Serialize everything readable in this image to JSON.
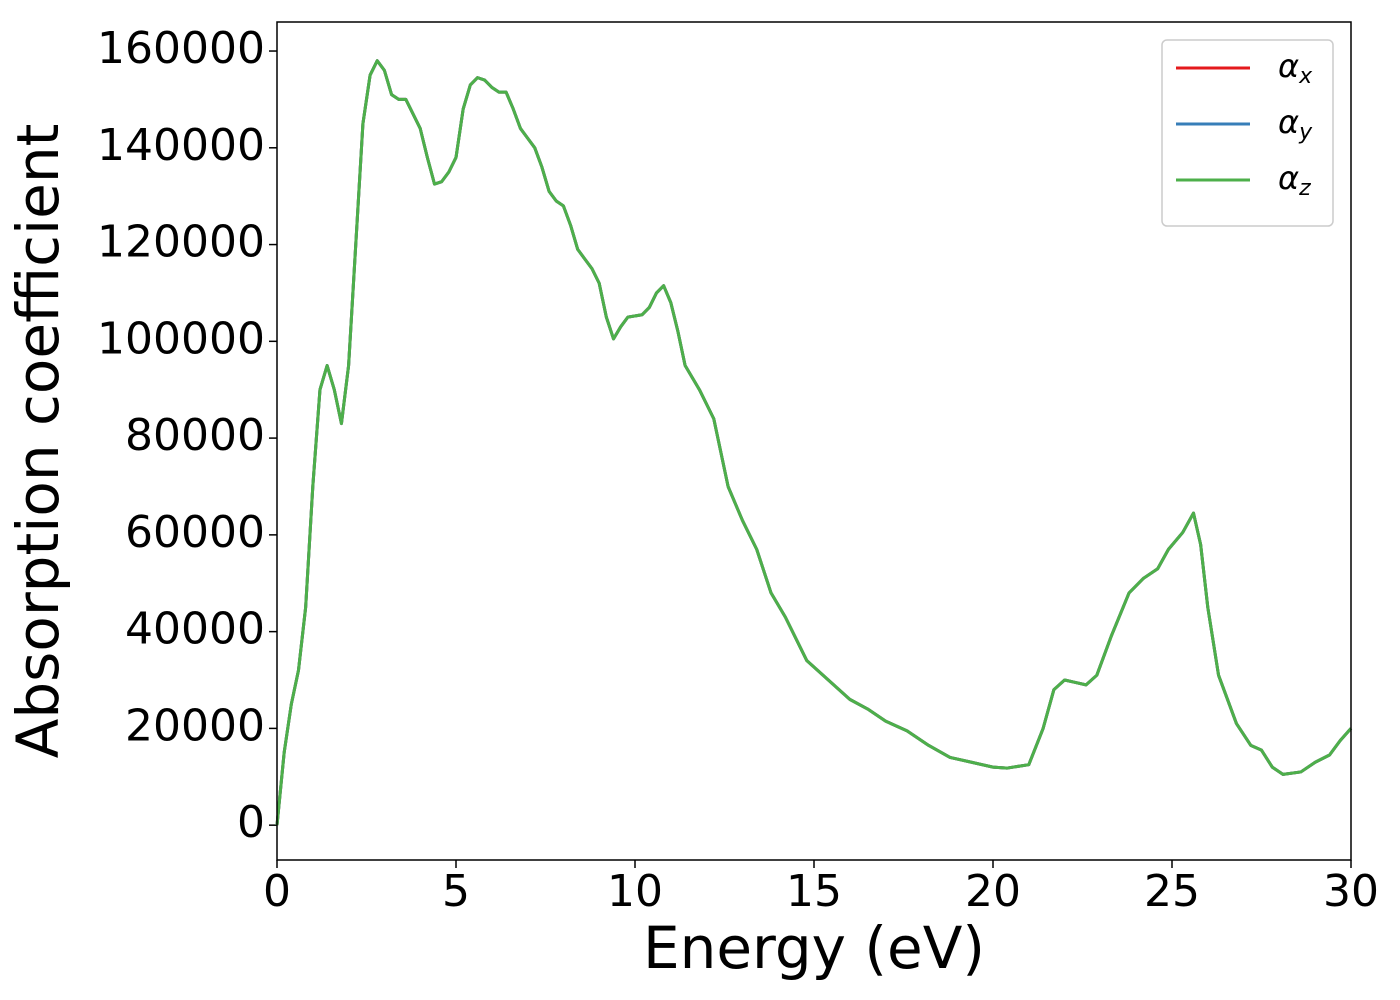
{
  "chart_data": {
    "type": "line",
    "xlabel": "Energy (eV)",
    "ylabel": "Absorption coefficient",
    "x": [
      0,
      0.2,
      0.4,
      0.6,
      0.8,
      1.0,
      1.2,
      1.4,
      1.6,
      1.8,
      2.0,
      2.2,
      2.4,
      2.6,
      2.8,
      3.0,
      3.2,
      3.4,
      3.6,
      3.8,
      4.0,
      4.2,
      4.4,
      4.6,
      4.8,
      5.0,
      5.2,
      5.4,
      5.6,
      5.8,
      6.0,
      6.2,
      6.4,
      6.6,
      6.8,
      7.0,
      7.2,
      7.4,
      7.6,
      7.8,
      8.0,
      8.2,
      8.4,
      8.6,
      8.8,
      9.0,
      9.2,
      9.4,
      9.6,
      9.8,
      10.2,
      10.4,
      10.6,
      10.8,
      11.0,
      11.2,
      11.4,
      11.8,
      12.2,
      12.6,
      13.0,
      13.4,
      13.8,
      14.2,
      14.6,
      14.8,
      15.4,
      16.0,
      16.5,
      17.0,
      17.6,
      18.2,
      18.8,
      19.4,
      20.0,
      20.4,
      21.0,
      21.4,
      21.7,
      22.0,
      22.3,
      22.6,
      22.9,
      23.3,
      23.8,
      24.2,
      24.6,
      24.9,
      25.3,
      25.6,
      25.8,
      26.0,
      26.3,
      26.8,
      27.2,
      27.5,
      27.8,
      28.1,
      28.6,
      29.0,
      29.4,
      29.7,
      30.0
    ],
    "series": [
      {
        "name": "αx",
        "color": "#e41a1c",
        "values": [
          0,
          15000,
          25000,
          32000,
          45000,
          70000,
          90000,
          95000,
          90000,
          83000,
          95000,
          120000,
          145000,
          155000,
          158000,
          156000,
          151000,
          150000,
          150000,
          147000,
          144000,
          138000,
          132500,
          133000,
          135000,
          138000,
          148000,
          153000,
          154500,
          154000,
          152500,
          151500,
          151500,
          148000,
          144000,
          142000,
          140000,
          136000,
          131000,
          129000,
          128000,
          124000,
          119000,
          117000,
          115000,
          112000,
          105000,
          100500,
          103000,
          105000,
          105500,
          107000,
          110000,
          111500,
          108000,
          102000,
          95000,
          90000,
          84000,
          70000,
          63000,
          57000,
          48000,
          43000,
          37000,
          34000,
          30000,
          26000,
          24000,
          21500,
          19500,
          16500,
          14000,
          13000,
          12000,
          11800,
          12500,
          20000,
          28000,
          30000,
          29500,
          29000,
          31000,
          39000,
          48000,
          51000,
          53000,
          57000,
          60500,
          64500,
          58000,
          45000,
          31000,
          21000,
          16500,
          15500,
          12000,
          10500,
          11000,
          13000,
          14500,
          17500,
          20000
        ]
      },
      {
        "name": "αy",
        "color": "#377eb8",
        "values": [
          0,
          15000,
          25000,
          32000,
          45000,
          70000,
          90000,
          95000,
          90000,
          83000,
          95000,
          120000,
          145000,
          155000,
          158000,
          156000,
          151000,
          150000,
          150000,
          147000,
          144000,
          138000,
          132500,
          133000,
          135000,
          138000,
          148000,
          153000,
          154500,
          154000,
          152500,
          151500,
          151500,
          148000,
          144000,
          142000,
          140000,
          136000,
          131000,
          129000,
          128000,
          124000,
          119000,
          117000,
          115000,
          112000,
          105000,
          100500,
          103000,
          105000,
          105500,
          107000,
          110000,
          111500,
          108000,
          102000,
          95000,
          90000,
          84000,
          70000,
          63000,
          57000,
          48000,
          43000,
          37000,
          34000,
          30000,
          26000,
          24000,
          21500,
          19500,
          16500,
          14000,
          13000,
          12000,
          11800,
          12500,
          20000,
          28000,
          30000,
          29500,
          29000,
          31000,
          39000,
          48000,
          51000,
          53000,
          57000,
          60500,
          64500,
          58000,
          45000,
          31000,
          21000,
          16500,
          15500,
          12000,
          10500,
          11000,
          13000,
          14500,
          17500,
          20000
        ]
      },
      {
        "name": "αz",
        "color": "#4daf4a",
        "values": [
          0,
          15000,
          25000,
          32000,
          45000,
          70000,
          90000,
          95000,
          90000,
          83000,
          95000,
          120000,
          145000,
          155000,
          158000,
          156000,
          151000,
          150000,
          150000,
          147000,
          144000,
          138000,
          132500,
          133000,
          135000,
          138000,
          148000,
          153000,
          154500,
          154000,
          152500,
          151500,
          151500,
          148000,
          144000,
          142000,
          140000,
          136000,
          131000,
          129000,
          128000,
          124000,
          119000,
          117000,
          115000,
          112000,
          105000,
          100500,
          103000,
          105000,
          105500,
          107000,
          110000,
          111500,
          108000,
          102000,
          95000,
          90000,
          84000,
          70000,
          63000,
          57000,
          48000,
          43000,
          37000,
          34000,
          30000,
          26000,
          24000,
          21500,
          19500,
          16500,
          14000,
          13000,
          12000,
          11800,
          12500,
          20000,
          28000,
          30000,
          29500,
          29000,
          31000,
          39000,
          48000,
          51000,
          53000,
          57000,
          60500,
          64500,
          58000,
          45000,
          31000,
          21000,
          16500,
          15500,
          12000,
          10500,
          11000,
          13000,
          14500,
          17500,
          20000
        ]
      }
    ],
    "xlim": [
      0,
      30
    ],
    "xticks": [
      0,
      5,
      10,
      15,
      20,
      25,
      30
    ],
    "ylim": [
      -7200,
      166000
    ],
    "yticks": [
      0,
      20000,
      40000,
      60000,
      80000,
      100000,
      120000,
      140000,
      160000
    ],
    "legend": "upper right",
    "grid": false
  }
}
